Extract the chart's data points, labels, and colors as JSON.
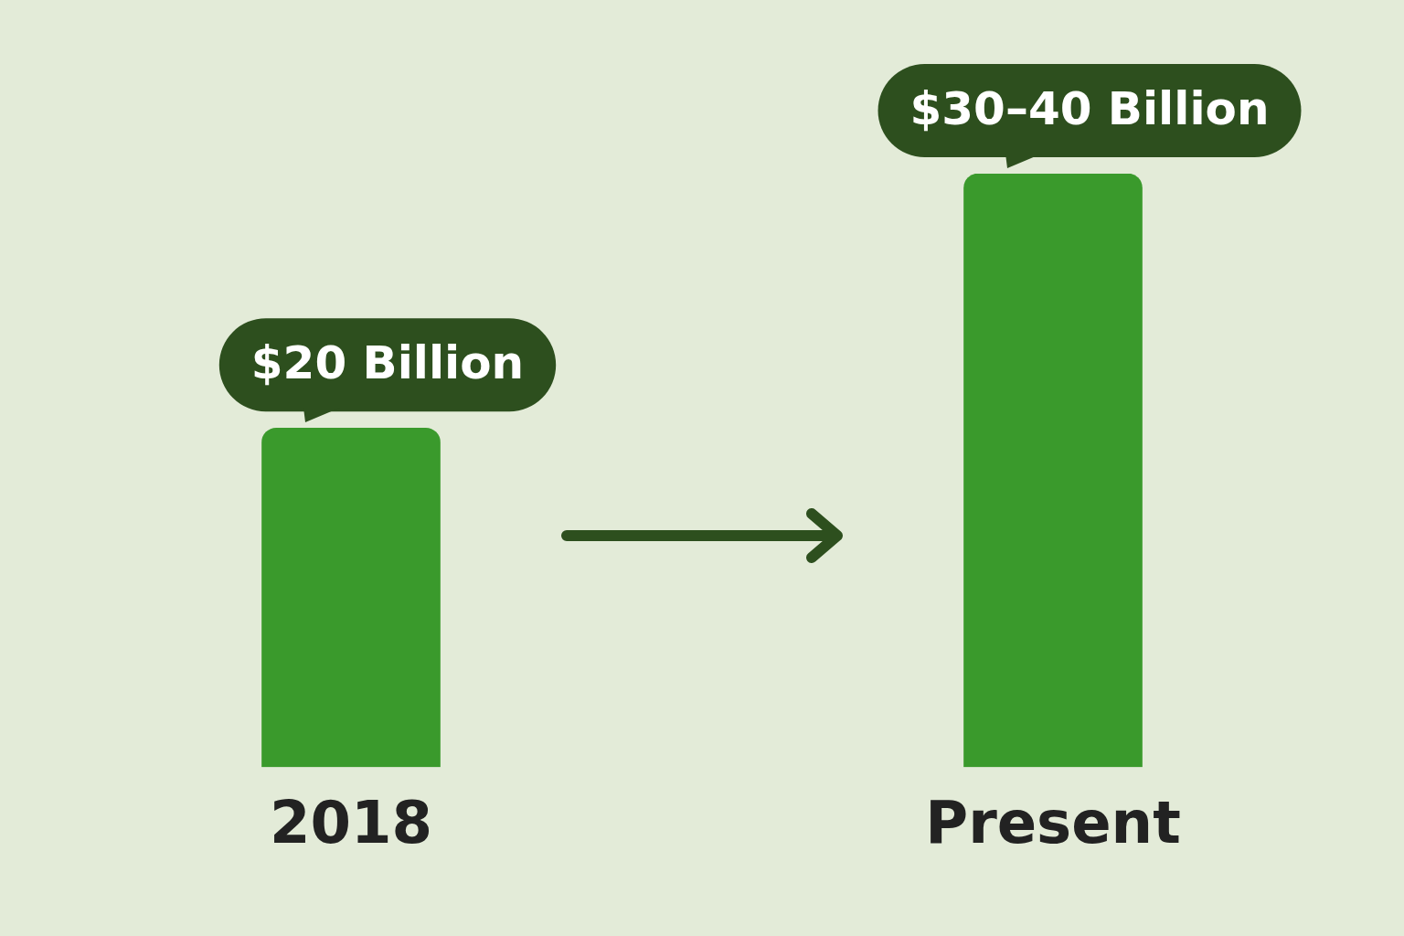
{
  "chart_data": {
    "type": "bar",
    "categories": [
      "2018",
      "Present"
    ],
    "values": [
      20,
      35
    ],
    "color": "#3a9a2c",
    "value_labels": [
      "$20 Billion",
      "$30–40 Billion"
    ]
  }
}
